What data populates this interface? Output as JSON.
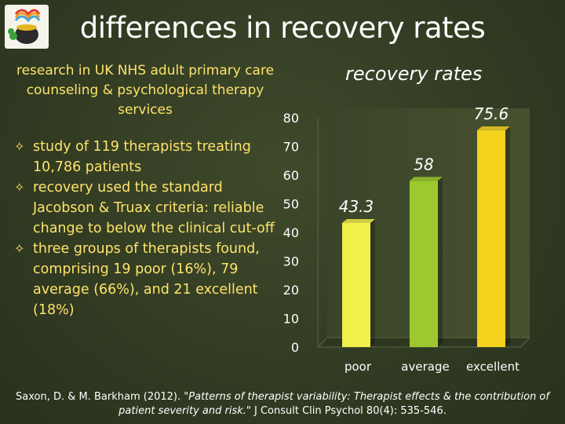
{
  "slide": {
    "title": "differences in recovery rates",
    "subtitle": "research in UK NHS adult primary care counseling & psychological therapy services",
    "bullets": [
      "study of 119 therapists treating 10,786 patients",
      "recovery used the standard Jacobson & Truax criteria: reliable change to below the clinical cut-off",
      "three groups of therapists found, comprising 19 poor (16%), 79 average (66%), and 21 excellent (18%)"
    ],
    "citation": {
      "authors": "Saxon, D. & M. Barkham (2012).",
      "title": "\"Patterns of therapist variability: Therapist effects & the contribution of patient severity and risk.\"",
      "journal": "J Consult Clin Psychol 80(4): 535-546."
    }
  },
  "chart_data": {
    "type": "bar",
    "title": "recovery rates",
    "categories": [
      "poor",
      "average",
      "excellent"
    ],
    "values": [
      43.3,
      58,
      75.6
    ],
    "value_labels": [
      "43.3",
      "58",
      "75.6"
    ],
    "colors": [
      "#f2f04a",
      "#9bc92f",
      "#f5d21e"
    ],
    "ylim": [
      0,
      80
    ],
    "yticks": [
      "0",
      "10",
      "20",
      "30",
      "40",
      "50",
      "60",
      "70",
      "80"
    ],
    "xlabel": "",
    "ylabel": ""
  }
}
